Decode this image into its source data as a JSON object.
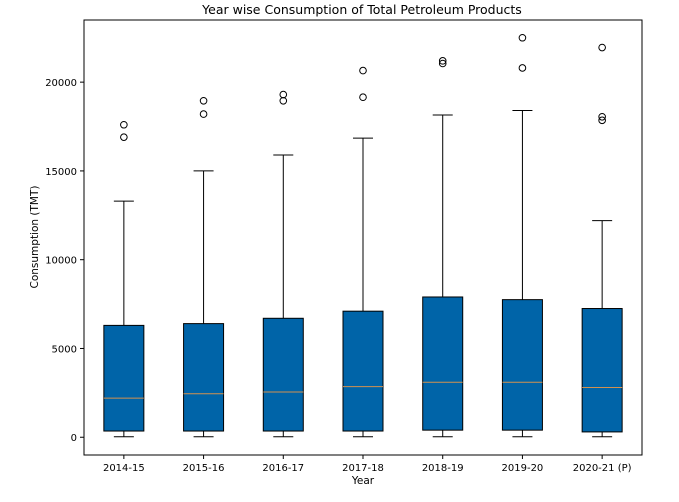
{
  "chart_data": {
    "type": "box",
    "title": "Year wise Consumption of Total Petroleum Products",
    "xlabel": "Year",
    "ylabel": "Consumption (TMT)",
    "ylim": [
      -1000,
      23500
    ],
    "yticks": [
      0,
      5000,
      10000,
      15000,
      20000
    ],
    "grid": false,
    "colors": {
      "box_fill": "#0064a8",
      "box_edge": "#000000",
      "median": "#d2914f",
      "whisker": "#000000",
      "flier": "#000000"
    },
    "categories": [
      "2014-15",
      "2015-16",
      "2016-17",
      "2017-18",
      "2018-19",
      "2019-20",
      "2020-21 (P)"
    ],
    "boxes": [
      {
        "category": "2014-15",
        "whisker_low": 30,
        "q1": 350,
        "median": 2200,
        "q3": 6300,
        "whisker_high": 13300,
        "outliers": [
          16900,
          17600
        ]
      },
      {
        "category": "2015-16",
        "whisker_low": 30,
        "q1": 350,
        "median": 2450,
        "q3": 6400,
        "whisker_high": 15000,
        "outliers": [
          18200,
          18950
        ]
      },
      {
        "category": "2016-17",
        "whisker_low": 30,
        "q1": 350,
        "median": 2550,
        "q3": 6700,
        "whisker_high": 15900,
        "outliers": [
          18950,
          19300
        ]
      },
      {
        "category": "2017-18",
        "whisker_low": 30,
        "q1": 350,
        "median": 2850,
        "q3": 7100,
        "whisker_high": 16850,
        "outliers": [
          19150,
          20650
        ]
      },
      {
        "category": "2018-19",
        "whisker_low": 30,
        "q1": 400,
        "median": 3100,
        "q3": 7900,
        "whisker_high": 18150,
        "outliers": [
          21050,
          21200
        ]
      },
      {
        "category": "2019-20",
        "whisker_low": 30,
        "q1": 400,
        "median": 3100,
        "q3": 7750,
        "whisker_high": 18400,
        "outliers": [
          20800,
          22500
        ]
      },
      {
        "category": "2020-21 (P)",
        "whisker_low": 30,
        "q1": 300,
        "median": 2800,
        "q3": 7250,
        "whisker_high": 12200,
        "outliers": [
          17850,
          18050,
          21950
        ]
      }
    ]
  }
}
